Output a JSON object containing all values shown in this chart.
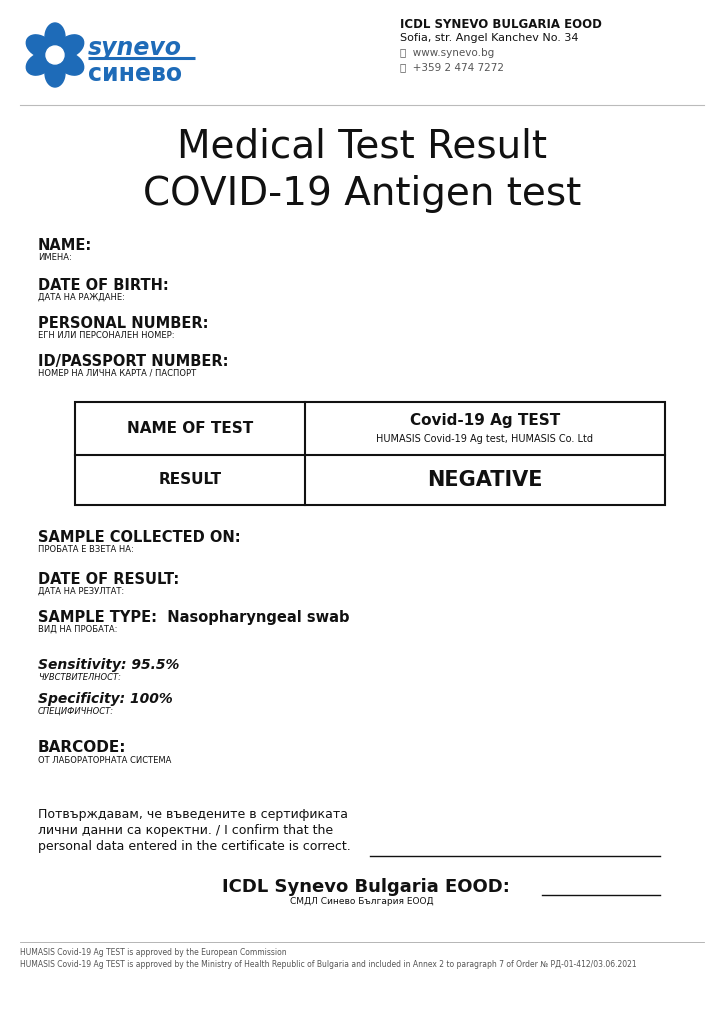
{
  "bg_color": "#ffffff",
  "header_company": "ICDL SYNEVO BULGARIA EOOD",
  "header_address": "Sofia, str. Angel Kanchev No. 34",
  "header_web": "ⓘ  www.synevo.bg",
  "header_phone": "⎕  +359 2 474 7272",
  "title_line1": "Medical Test Result",
  "title_line2": "COVID-19 Antigen test",
  "synevo_blue": "#1e6bb8",
  "field_name_label": "NAME:",
  "field_name_sub": "ИМЕНА:",
  "field_dob_label": "DATE OF BIRTH:",
  "field_dob_sub": "ДАТА НА РАЖДАНЕ:",
  "field_pn_label": "PERSONAL NUMBER:",
  "field_pn_sub": "ЕГН ИЛИ ПЕРСОНАЛЕН НОМЕР:",
  "field_id_label": "ID/PASSPORT NUMBER:",
  "field_id_sub": "НОМЕР НА ЛИЧНА КАРТА / ПАСПОРТ",
  "table_col1_row1": "NAME OF TEST",
  "table_col2_row1_bold": "Covid-19 Ag TEST",
  "table_col2_row1_sub": "HUMASIS Covid-19 Ag test, HUMASIS Co. Ltd",
  "table_col1_row2": "RESULT",
  "table_col2_row2": "NEGATIVE",
  "field_sample_label": "SAMPLE COLLECTED ON:",
  "field_sample_sub": "ПРОБАТА Е ВЗЕТА НА:",
  "field_date_label": "DATE OF RESULT:",
  "field_date_sub": "ДАТА НА РЕЗУЛТАТ:",
  "field_stype_label": "SAMPLE TYPE:  Nasopharyngeal swab",
  "field_stype_sub": "ВИД НА ПРОБАТА:",
  "field_sens_label": "Sensitivity: 95.5%",
  "field_sens_sub": "ЧУВСТВИТЕЛНОСТ:",
  "field_spec_label": "Specificity: 100%",
  "field_spec_sub": "СПЕЦИФИЧНОСТ:",
  "field_barcode_label": "BARCODE:",
  "field_barcode_sub": "ОТ ЛАБОРАТОРНАТА СИСТЕМА",
  "confirm_text1": "Потвърждавам, че въведените в сертификата",
  "confirm_text2": "лични данни са коректни. / I confirm that the",
  "confirm_text3": "personal data entered in the certificate is correct.",
  "icdl_label": "ICDL Synevo Bulgaria EOOD:",
  "icdl_sub": "СМДЛ Синево България ЕООД",
  "footer1": "HUMASIS Covid-19 Ag TEST is approved by the European Commission",
  "footer2": "HUMASIS Covid-19 Ag TEST is approved by the Ministry of Health Republic of Bulgaria and included in Annex 2 to paragraph 7 of Order № РД-01-412/03.06.2021"
}
